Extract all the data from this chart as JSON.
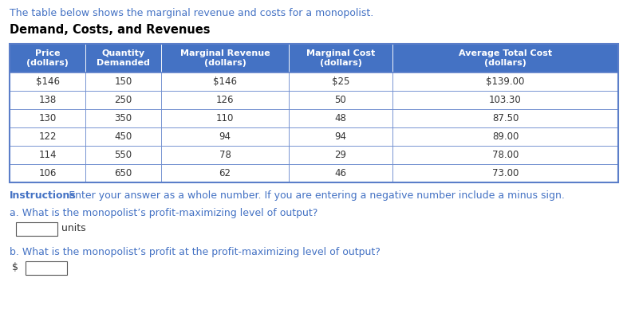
{
  "intro_text": "The table below shows the marginal revenue and costs for a monopolist.",
  "intro_color": "#4472C4",
  "title": "Demand, Costs, and Revenues",
  "header_bg": "#4472C4",
  "header_text_color": "#FFFFFF",
  "header_labels": [
    "Price\n(dollars)",
    "Quantity\nDemanded",
    "Marginal Revenue\n(dollars)",
    "Marginal Cost\n(dollars)",
    "Average Total Cost\n(dollars)"
  ],
  "rows": [
    [
      "$146",
      "150",
      "$146",
      "$25",
      "$139.00"
    ],
    [
      "138",
      "250",
      "126",
      "50",
      "103.30"
    ],
    [
      "130",
      "350",
      "110",
      "48",
      "87.50"
    ],
    [
      "122",
      "450",
      "94",
      "94",
      "89.00"
    ],
    [
      "114",
      "550",
      "78",
      "29",
      "78.00"
    ],
    [
      "106",
      "650",
      "62",
      "46",
      "73.00"
    ]
  ],
  "row_bg_even": "#FFFFFF",
  "row_bg_odd": "#FFFFFF",
  "instructions_bold": "Instructions",
  "instructions_rest": ": Enter your answer as a whole number. If you are entering a negative number include a minus sign.",
  "instructions_color": "#4472C4",
  "q_a": "a. What is the monopolist’s profit-maximizing level of output?",
  "q_b": "b. What is the monopolist’s profit at the profit-maximizing level of output?",
  "text_color": "#4472C4",
  "border_color": "#5B7EC9",
  "fig_w": 7.91,
  "fig_h": 4.18,
  "dpi": 100
}
